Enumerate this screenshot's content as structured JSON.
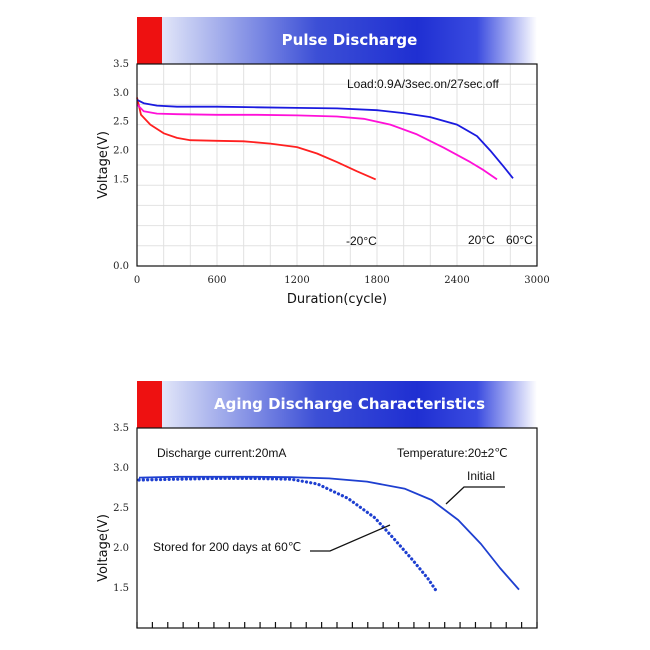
{
  "chart_data": [
    {
      "type": "line",
      "title": "Pulse Discharge",
      "xlabel": "Duration(cycle)",
      "ylabel": "Voltage(V)",
      "xlim": [
        0,
        3000
      ],
      "ylim": [
        0,
        3.5
      ],
      "xticks": [
        "0",
        "600",
        "1200",
        "1800",
        "2400",
        "3000"
      ],
      "yticks": [
        "0.0",
        "1.5",
        "2.0",
        "2.5",
        "3.0",
        "3.5"
      ],
      "grid": true,
      "annotation": "Load:0.9A/3sec.on/27sec.off",
      "series": [
        {
          "name": "-20°C",
          "color": "#ff2020",
          "points": [
            [
              0,
              2.92
            ],
            [
              30,
              2.62
            ],
            [
              100,
              2.45
            ],
            [
              200,
              2.3
            ],
            [
              300,
              2.22
            ],
            [
              400,
              2.18
            ],
            [
              600,
              2.17
            ],
            [
              800,
              2.16
            ],
            [
              1000,
              2.12
            ],
            [
              1200,
              2.06
            ],
            [
              1350,
              1.95
            ],
            [
              1500,
              1.8
            ],
            [
              1650,
              1.64
            ],
            [
              1790,
              1.5
            ]
          ]
        },
        {
          "name": "20°C",
          "color": "#ff10d8",
          "points": [
            [
              0,
              2.8
            ],
            [
              50,
              2.68
            ],
            [
              150,
              2.64
            ],
            [
              300,
              2.63
            ],
            [
              600,
              2.62
            ],
            [
              900,
              2.62
            ],
            [
              1200,
              2.61
            ],
            [
              1500,
              2.59
            ],
            [
              1700,
              2.55
            ],
            [
              1900,
              2.45
            ],
            [
              2100,
              2.28
            ],
            [
              2300,
              2.05
            ],
            [
              2500,
              1.8
            ],
            [
              2600,
              1.66
            ],
            [
              2700,
              1.5
            ]
          ]
        },
        {
          "name": "60°C",
          "color": "#1a1adf",
          "points": [
            [
              0,
              2.88
            ],
            [
              50,
              2.82
            ],
            [
              150,
              2.78
            ],
            [
              300,
              2.76
            ],
            [
              600,
              2.76
            ],
            [
              900,
              2.75
            ],
            [
              1200,
              2.74
            ],
            [
              1500,
              2.73
            ],
            [
              1800,
              2.7
            ],
            [
              2000,
              2.65
            ],
            [
              2200,
              2.58
            ],
            [
              2400,
              2.45
            ],
            [
              2550,
              2.25
            ],
            [
              2650,
              2.0
            ],
            [
              2750,
              1.72
            ],
            [
              2820,
              1.52
            ]
          ]
        }
      ]
    },
    {
      "type": "line",
      "title": "Aging Discharge Characteristics",
      "xlabel": "",
      "ylabel": "Voltage(V)",
      "ylim": [
        1.0,
        3.5
      ],
      "yticks": [
        "1.5",
        "2.0",
        "2.5",
        "3.0",
        "3.5"
      ],
      "grid": false,
      "annotations": [
        "Discharge current:20mA",
        "Temperature:20±2℃"
      ],
      "series": [
        {
          "name": "Initial",
          "color": "#1e3fd0",
          "style": "solid",
          "points": [
            [
              0,
              2.88
            ],
            [
              10,
              2.89
            ],
            [
              20,
              2.89
            ],
            [
              30,
              2.89
            ],
            [
              40,
              2.885
            ],
            [
              50,
              2.87
            ],
            [
              60,
              2.83
            ],
            [
              70,
              2.74
            ],
            [
              77,
              2.6
            ],
            [
              84,
              2.35
            ],
            [
              90,
              2.05
            ],
            [
              95,
              1.75
            ],
            [
              100,
              1.48
            ]
          ]
        },
        {
          "name": "Stored for 200 days at 60℃",
          "color": "#1e3fd0",
          "style": "dotted",
          "points": [
            [
              0,
              2.85
            ],
            [
              10,
              2.86
            ],
            [
              20,
              2.87
            ],
            [
              30,
              2.87
            ],
            [
              40,
              2.86
            ],
            [
              47,
              2.8
            ],
            [
              55,
              2.62
            ],
            [
              62,
              2.38
            ],
            [
              67,
              2.12
            ],
            [
              72,
              1.85
            ],
            [
              76,
              1.62
            ],
            [
              78,
              1.48
            ]
          ]
        }
      ]
    }
  ]
}
